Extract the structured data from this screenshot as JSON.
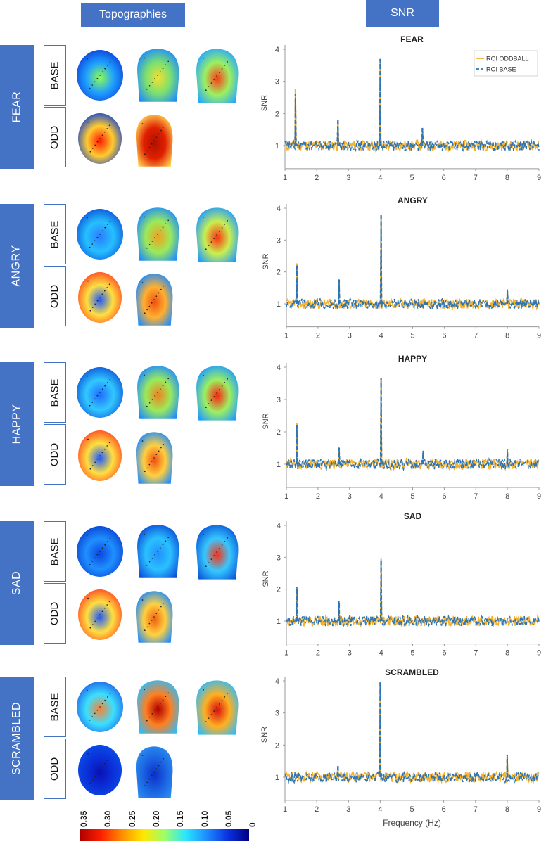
{
  "headers": {
    "topographies": "Topographies",
    "snr": "SNR"
  },
  "row_labels": {
    "base": "BASE",
    "odd": "ODD"
  },
  "conditions": [
    "FEAR",
    "ANGRY",
    "HAPPY",
    "SAD",
    "SCRAMBLED"
  ],
  "colorbar": {
    "ticks": [
      "0.35",
      "0.30",
      "0.25",
      "0.20",
      "0.15",
      "0.10",
      "0.05",
      "0"
    ]
  },
  "chart_data": [
    {
      "type": "line",
      "title": "FEAR",
      "ylabel": "SNR",
      "xlabel": "",
      "xlim": [
        1,
        9
      ],
      "ylim": [
        0.5,
        4
      ],
      "xticks": [
        "1",
        "2",
        "3",
        "4",
        "5",
        "6",
        "7",
        "8",
        "9"
      ],
      "yticks": [
        "1",
        "2",
        "3",
        "4"
      ],
      "legend": [
        "ROI ODDBALL",
        "ROI BASE"
      ],
      "legend_position": "top-right",
      "series": [
        {
          "name": "ROI ODDBALL",
          "color": "#f5b22e",
          "peaks": [
            [
              1.33,
              2.75
            ],
            [
              2.67,
              1.75
            ],
            [
              4.0,
              3.7
            ],
            [
              5.33,
              1.5
            ]
          ]
        },
        {
          "name": "ROI BASE",
          "color": "#2e75b6",
          "peaks": [
            [
              1.33,
              2.6
            ],
            [
              2.67,
              1.8
            ],
            [
              4.0,
              3.7
            ],
            [
              5.33,
              1.55
            ]
          ]
        }
      ]
    },
    {
      "type": "line",
      "title": "ANGRY",
      "ylabel": "SNR",
      "xlabel": "",
      "xlim": [
        1,
        9
      ],
      "ylim": [
        0.5,
        4
      ],
      "xticks": [
        "1",
        "2",
        "3",
        "4",
        "5",
        "6",
        "7",
        "8",
        "9"
      ],
      "yticks": [
        "1",
        "2",
        "3",
        "4"
      ],
      "series": [
        {
          "name": "ROI ODDBALL",
          "color": "#f5b22e",
          "peaks": [
            [
              1.33,
              2.25
            ],
            [
              2.67,
              1.7
            ],
            [
              4.0,
              3.75
            ],
            [
              8.0,
              1.4
            ]
          ]
        },
        {
          "name": "ROI BASE",
          "color": "#2e75b6",
          "peaks": [
            [
              1.33,
              2.2
            ],
            [
              2.67,
              1.75
            ],
            [
              4.0,
              3.8
            ],
            [
              8.0,
              1.45
            ]
          ]
        }
      ]
    },
    {
      "type": "line",
      "title": "HAPPY",
      "ylabel": "SNR",
      "xlabel": "",
      "xlim": [
        1,
        9
      ],
      "ylim": [
        0.5,
        4
      ],
      "xticks": [
        "1",
        "2",
        "3",
        "4",
        "5",
        "6",
        "7",
        "8",
        "9"
      ],
      "yticks": [
        "1",
        "2",
        "3",
        "4"
      ],
      "series": [
        {
          "name": "ROI ODDBALL",
          "color": "#f5b22e",
          "peaks": [
            [
              1.33,
              2.25
            ],
            [
              2.67,
              1.45
            ],
            [
              4.0,
              3.65
            ],
            [
              5.33,
              1.35
            ],
            [
              8.0,
              1.4
            ]
          ]
        },
        {
          "name": "ROI BASE",
          "color": "#2e75b6",
          "peaks": [
            [
              1.33,
              2.2
            ],
            [
              2.67,
              1.5
            ],
            [
              4.0,
              3.65
            ],
            [
              5.33,
              1.4
            ],
            [
              8.0,
              1.45
            ]
          ]
        }
      ]
    },
    {
      "type": "line",
      "title": "SAD",
      "ylabel": "SNR",
      "xlabel": "",
      "xlim": [
        1,
        9
      ],
      "ylim": [
        0.5,
        4
      ],
      "xticks": [
        "1",
        "2",
        "3",
        "4",
        "5",
        "6",
        "7",
        "8",
        "9"
      ],
      "yticks": [
        "1",
        "2",
        "3",
        "4"
      ],
      "series": [
        {
          "name": "ROI ODDBALL",
          "color": "#f5b22e",
          "peaks": [
            [
              1.33,
              2.0
            ],
            [
              2.67,
              1.55
            ],
            [
              4.0,
              2.9
            ]
          ]
        },
        {
          "name": "ROI BASE",
          "color": "#2e75b6",
          "peaks": [
            [
              1.33,
              2.05
            ],
            [
              2.67,
              1.6
            ],
            [
              4.0,
              2.95
            ]
          ]
        }
      ]
    },
    {
      "type": "line",
      "title": "SCRAMBLED",
      "ylabel": "SNR",
      "xlabel": "Frequency (Hz)",
      "xlim": [
        1,
        9
      ],
      "ylim": [
        0.5,
        4
      ],
      "xticks": [
        "1",
        "2",
        "3",
        "4",
        "5",
        "6",
        "7",
        "8",
        "9"
      ],
      "yticks": [
        "1",
        "2",
        "3",
        "4"
      ],
      "series": [
        {
          "name": "ROI ODDBALL",
          "color": "#f5b22e",
          "peaks": [
            [
              2.67,
              1.3
            ],
            [
              4.0,
              3.95
            ],
            [
              8.0,
              1.65
            ]
          ]
        },
        {
          "name": "ROI BASE",
          "color": "#2e75b6",
          "peaks": [
            [
              2.67,
              1.35
            ],
            [
              4.0,
              3.95
            ],
            [
              8.0,
              1.7
            ]
          ]
        }
      ]
    }
  ]
}
